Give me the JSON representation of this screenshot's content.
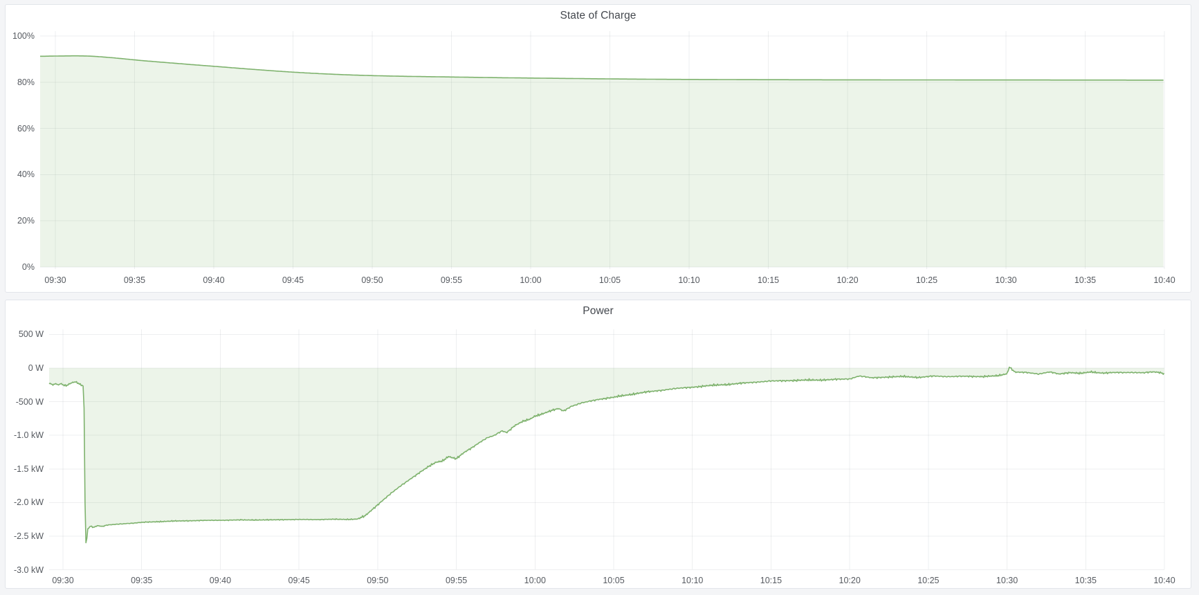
{
  "page": {
    "background": "#f4f5f7",
    "panel_background": "#ffffff",
    "accent_green": "#7EB26D"
  },
  "panels": [
    {
      "title": "State of Charge"
    },
    {
      "title": "Power"
    }
  ],
  "chart_data": [
    {
      "type": "area",
      "title": "State of Charge",
      "unit": "percent",
      "line_color": "#7EB26D",
      "fill_color": "rgba(126,178,109,0.15)",
      "grid": true,
      "legend": "none",
      "smooth": true,
      "x_range_minutes_from_0930": [
        -0.96,
        70
      ],
      "y_range": [
        -0.9,
        102.1
      ],
      "x_ticks": [
        {
          "t": 0,
          "label": "09:30"
        },
        {
          "t": 5,
          "label": "09:35"
        },
        {
          "t": 10,
          "label": "09:40"
        },
        {
          "t": 15,
          "label": "09:45"
        },
        {
          "t": 20,
          "label": "09:50"
        },
        {
          "t": 25,
          "label": "09:55"
        },
        {
          "t": 30,
          "label": "10:00"
        },
        {
          "t": 35,
          "label": "10:05"
        },
        {
          "t": 40,
          "label": "10:10"
        },
        {
          "t": 45,
          "label": "10:15"
        },
        {
          "t": 50,
          "label": "10:20"
        },
        {
          "t": 55,
          "label": "10:25"
        },
        {
          "t": 60,
          "label": "10:30"
        },
        {
          "t": 65,
          "label": "10:35"
        },
        {
          "t": 70,
          "label": "10:40"
        }
      ],
      "y_ticks": [
        {
          "v": 100,
          "label": "100%"
        },
        {
          "v": 80,
          "label": "80%"
        },
        {
          "v": 60,
          "label": "60%"
        },
        {
          "v": 40,
          "label": "40%"
        },
        {
          "v": 20,
          "label": "20%"
        },
        {
          "v": 0,
          "label": "0%"
        }
      ],
      "series_points_t_min_vs_percent": [
        [
          -1,
          91.2
        ],
        [
          0,
          91.32
        ],
        [
          1,
          91.4
        ],
        [
          1.6,
          91.42
        ],
        [
          2.2,
          91.3
        ],
        [
          2.8,
          91.05
        ],
        [
          3.4,
          90.7
        ],
        [
          4,
          90.35
        ],
        [
          4.5,
          90.0
        ],
        [
          5,
          89.65
        ],
        [
          6,
          89.05
        ],
        [
          7,
          88.5
        ],
        [
          8,
          87.95
        ],
        [
          9,
          87.4
        ],
        [
          10,
          86.9
        ],
        [
          11,
          86.35
        ],
        [
          12,
          85.8
        ],
        [
          13,
          85.3
        ],
        [
          14,
          84.8
        ],
        [
          15,
          84.35
        ],
        [
          16,
          83.95
        ],
        [
          17,
          83.6
        ],
        [
          18,
          83.3
        ],
        [
          19,
          83.05
        ],
        [
          20,
          82.85
        ],
        [
          21,
          82.7
        ],
        [
          22,
          82.55
        ],
        [
          23,
          82.45
        ],
        [
          24,
          82.35
        ],
        [
          25,
          82.25
        ],
        [
          26,
          82.15
        ],
        [
          27,
          82.05
        ],
        [
          28,
          81.95
        ],
        [
          29,
          81.87
        ],
        [
          30,
          81.8
        ],
        [
          31,
          81.72
        ],
        [
          32,
          81.65
        ],
        [
          33,
          81.58
        ],
        [
          34,
          81.5
        ],
        [
          35,
          81.43
        ],
        [
          36,
          81.37
        ],
        [
          37,
          81.32
        ],
        [
          38,
          81.27
        ],
        [
          39,
          81.23
        ],
        [
          40,
          81.2
        ],
        [
          42,
          81.15
        ],
        [
          44,
          81.1
        ],
        [
          46,
          81.07
        ],
        [
          48,
          81.04
        ],
        [
          50,
          81.02
        ],
        [
          53,
          81.0
        ],
        [
          56,
          80.98
        ],
        [
          60,
          80.96
        ],
        [
          64,
          80.94
        ],
        [
          67,
          80.92
        ],
        [
          70,
          80.9
        ]
      ]
    },
    {
      "type": "area",
      "title": "Power",
      "unit": "watt",
      "line_color": "#7EB26D",
      "fill_color": "rgba(126,178,109,0.15)",
      "grid": true,
      "legend": "none",
      "smooth": false,
      "x_range_minutes_from_0930": [
        -0.88,
        70
      ],
      "y_range": [
        -2994,
        576
      ],
      "x_ticks": [
        {
          "t": 0,
          "label": "09:30"
        },
        {
          "t": 5,
          "label": "09:35"
        },
        {
          "t": 10,
          "label": "09:40"
        },
        {
          "t": 15,
          "label": "09:45"
        },
        {
          "t": 20,
          "label": "09:50"
        },
        {
          "t": 25,
          "label": "09:55"
        },
        {
          "t": 30,
          "label": "10:00"
        },
        {
          "t": 35,
          "label": "10:05"
        },
        {
          "t": 40,
          "label": "10:10"
        },
        {
          "t": 45,
          "label": "10:15"
        },
        {
          "t": 50,
          "label": "10:20"
        },
        {
          "t": 55,
          "label": "10:25"
        },
        {
          "t": 60,
          "label": "10:30"
        },
        {
          "t": 65,
          "label": "10:35"
        },
        {
          "t": 70,
          "label": "10:40"
        }
      ],
      "y_ticks": [
        {
          "v": 500,
          "label": "500 W"
        },
        {
          "v": 0,
          "label": "0 W"
        },
        {
          "v": -500,
          "label": "-500 W"
        },
        {
          "v": -1000,
          "label": "-1.0 kW"
        },
        {
          "v": -1500,
          "label": "-1.5 kW"
        },
        {
          "v": -2000,
          "label": "-2.0 kW"
        },
        {
          "v": -2500,
          "label": "-2.5 kW"
        },
        {
          "v": -3000,
          "label": "-3.0 kW"
        }
      ],
      "noise_fluctuation_watts": [
        {
          "from": -1,
          "to": 1.3,
          "amp": 12
        },
        {
          "from": 1.6,
          "to": 18.8,
          "amp": 8
        },
        {
          "from": 18.8,
          "to": 50,
          "amp": 16
        },
        {
          "from": 50,
          "to": 70,
          "amp": 14
        }
      ],
      "series_points_t_min_vs_watts": [
        [
          -1,
          -215
        ],
        [
          -0.8,
          -238
        ],
        [
          -0.6,
          -252
        ],
        [
          -0.45,
          -230
        ],
        [
          -0.3,
          -254
        ],
        [
          -0.15,
          -228
        ],
        [
          0,
          -248
        ],
        [
          0.2,
          -260
        ],
        [
          0.4,
          -236
        ],
        [
          0.6,
          -214
        ],
        [
          0.8,
          -206
        ],
        [
          1.0,
          -232
        ],
        [
          1.15,
          -255
        ],
        [
          1.3,
          -268
        ],
        [
          1.36,
          -760
        ],
        [
          1.42,
          -2620
        ],
        [
          1.5,
          -2575
        ],
        [
          1.58,
          -2390
        ],
        [
          1.75,
          -2350
        ],
        [
          1.95,
          -2368
        ],
        [
          2.2,
          -2342
        ],
        [
          2.5,
          -2355
        ],
        [
          2.8,
          -2335
        ],
        [
          3.2,
          -2328
        ],
        [
          3.6,
          -2320
        ],
        [
          4,
          -2312
        ],
        [
          4.5,
          -2305
        ],
        [
          5,
          -2295
        ],
        [
          5.5,
          -2290
        ],
        [
          6,
          -2284
        ],
        [
          7,
          -2276
        ],
        [
          8,
          -2270
        ],
        [
          9,
          -2266
        ],
        [
          10,
          -2263
        ],
        [
          11,
          -2260
        ],
        [
          12,
          -2258
        ],
        [
          13,
          -2259
        ],
        [
          14,
          -2254
        ],
        [
          15,
          -2252
        ],
        [
          16,
          -2253
        ],
        [
          17,
          -2249
        ],
        [
          18,
          -2250
        ],
        [
          18.7,
          -2246
        ],
        [
          19.2,
          -2200
        ],
        [
          19.7,
          -2095
        ],
        [
          20.2,
          -1990
        ],
        [
          20.7,
          -1892
        ],
        [
          21.2,
          -1800
        ],
        [
          21.7,
          -1712
        ],
        [
          22.2,
          -1628
        ],
        [
          22.7,
          -1548
        ],
        [
          23.2,
          -1472
        ],
        [
          23.7,
          -1402
        ],
        [
          24.1,
          -1380
        ],
        [
          24.5,
          -1315
        ],
        [
          25,
          -1352
        ],
        [
          25.5,
          -1255
        ],
        [
          26,
          -1180
        ],
        [
          26.5,
          -1102
        ],
        [
          27,
          -1035
        ],
        [
          27.4,
          -1005
        ],
        [
          27.9,
          -932
        ],
        [
          28.2,
          -958
        ],
        [
          28.7,
          -858
        ],
        [
          29.2,
          -798
        ],
        [
          29.7,
          -758
        ],
        [
          30,
          -712
        ],
        [
          30.5,
          -678
        ],
        [
          31,
          -638
        ],
        [
          31.5,
          -602
        ],
        [
          31.8,
          -638
        ],
        [
          32.3,
          -568
        ],
        [
          33,
          -518
        ],
        [
          33.5,
          -492
        ],
        [
          34,
          -466
        ],
        [
          34.5,
          -450
        ],
        [
          35,
          -436
        ],
        [
          35.5,
          -414
        ],
        [
          36,
          -394
        ],
        [
          36.5,
          -376
        ],
        [
          37,
          -360
        ],
        [
          37.5,
          -346
        ],
        [
          38,
          -330
        ],
        [
          38.5,
          -316
        ],
        [
          39,
          -304
        ],
        [
          39.5,
          -294
        ],
        [
          40,
          -284
        ],
        [
          41,
          -263
        ],
        [
          42,
          -246
        ],
        [
          43,
          -230
        ],
        [
          44,
          -208
        ],
        [
          45,
          -194
        ],
        [
          46,
          -187
        ],
        [
          47,
          -181
        ],
        [
          48,
          -177
        ],
        [
          49,
          -171
        ],
        [
          50,
          -160
        ],
        [
          50.6,
          -118
        ],
        [
          51.4,
          -146
        ],
        [
          52.4,
          -133
        ],
        [
          53.4,
          -126
        ],
        [
          54.4,
          -138
        ],
        [
          55.4,
          -120
        ],
        [
          56.4,
          -126
        ],
        [
          57.4,
          -123
        ],
        [
          58.4,
          -126
        ],
        [
          59.4,
          -116
        ],
        [
          60.0,
          -84
        ],
        [
          60.15,
          20
        ],
        [
          60.5,
          -58
        ],
        [
          61.2,
          -68
        ],
        [
          62,
          -86
        ],
        [
          62.7,
          -58
        ],
        [
          63.3,
          -90
        ],
        [
          64,
          -66
        ],
        [
          64.7,
          -78
        ],
        [
          65.3,
          -60
        ],
        [
          66,
          -73
        ],
        [
          66.7,
          -66
        ],
        [
          67.3,
          -70
        ],
        [
          68,
          -63
        ],
        [
          68.7,
          -70
        ],
        [
          69.3,
          -58
        ],
        [
          69.7,
          -66
        ],
        [
          70,
          -85
        ]
      ]
    }
  ]
}
